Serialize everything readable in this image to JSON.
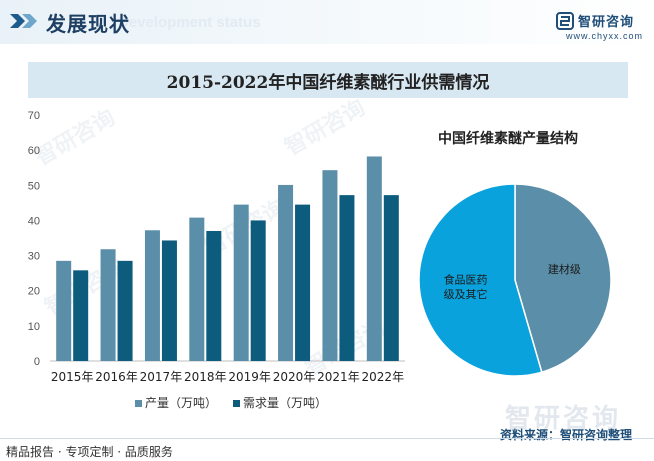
{
  "header": {
    "title": "发展现状",
    "subtitle": "Development status",
    "logo_name": "智研咨询",
    "logo_url": "www.chyxx.com"
  },
  "main_title": "2015-2022年中国纤维素醚行业供需情况",
  "chart_data": [
    {
      "type": "bar",
      "title": "2015-2022年中国纤维素醚行业供需情况",
      "categories": [
        "2015年",
        "2016年",
        "2017年",
        "2018年",
        "2019年",
        "2020年",
        "2021年",
        "2022年"
      ],
      "series": [
        {
          "name": "产量（万吨）",
          "color": "#5b8ea8",
          "values": [
            28.5,
            31.8,
            37.2,
            40.8,
            44.5,
            50.1,
            54.3,
            58.2
          ]
        },
        {
          "name": "需求量（万吨）",
          "color": "#0d5b7d",
          "values": [
            25.8,
            28.5,
            34.3,
            37.0,
            40.0,
            44.5,
            47.2,
            47.2
          ]
        }
      ],
      "ylim": [
        0,
        70
      ],
      "yticks": [
        0,
        10,
        20,
        30,
        40,
        50,
        60,
        70
      ],
      "xlabel": "",
      "ylabel": "",
      "grid": false,
      "legend": "bottom"
    },
    {
      "type": "pie",
      "title": "中国纤维素醚产量结构",
      "slices": [
        {
          "label": "建材级",
          "value": 45.5,
          "color": "#5b8ea8"
        },
        {
          "label": "食品医药级及其它",
          "value": 54.5,
          "color": "#0aa2dc"
        }
      ]
    }
  ],
  "footer": {
    "left": "精品报告 · 专项定制 · 品质服务",
    "source": "资料来源：智研咨询整理",
    "watermark": "智研咨询"
  }
}
